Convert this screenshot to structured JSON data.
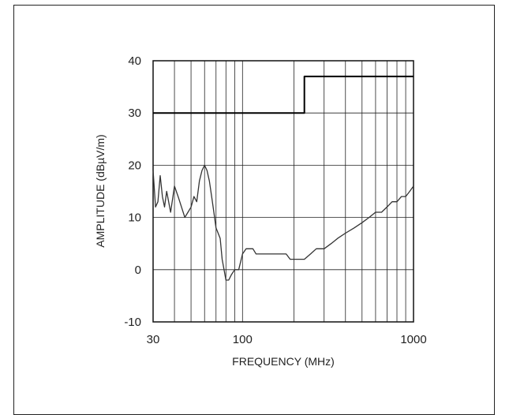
{
  "chart_data": {
    "type": "line",
    "xlabel": "FREQUENCY (MHz)",
    "ylabel": "AMPLITUDE (dBµV/m)",
    "x_scale": "log",
    "xlim": [
      30,
      1000
    ],
    "ylim": [
      -10,
      40
    ],
    "x_tick_labels": [
      "30",
      "100",
      "1000"
    ],
    "x_tick_values": [
      30,
      100,
      1000
    ],
    "y_tick_labels": [
      "-10",
      "0",
      "10",
      "20",
      "30",
      "40"
    ],
    "y_tick_values": [
      -10,
      0,
      10,
      20,
      30,
      40
    ],
    "grid": true,
    "series": [
      {
        "values_x": [
          30,
          230,
          230,
          1000
        ],
        "values_y": [
          30,
          30,
          37,
          37
        ],
        "color": "#000000"
      },
      {
        "values_x": [
          30,
          31,
          32,
          33,
          34,
          35,
          36,
          37,
          38,
          40,
          42,
          44,
          46,
          48,
          50,
          52,
          54,
          56,
          58,
          60,
          62,
          64,
          66,
          68,
          70,
          72,
          74,
          76,
          78,
          80,
          83,
          86,
          90,
          95,
          100,
          105,
          110,
          115,
          120,
          130,
          140,
          150,
          160,
          170,
          180,
          190,
          200,
          210,
          220,
          230,
          250,
          270,
          300,
          330,
          360,
          400,
          450,
          500,
          550,
          600,
          650,
          700,
          750,
          800,
          850,
          900,
          950,
          1000
        ],
        "values_y": [
          19,
          12,
          13,
          18,
          14,
          12,
          15,
          13,
          11,
          16,
          14,
          12,
          10,
          11,
          12,
          14,
          13,
          17,
          19,
          20,
          19,
          17,
          14,
          11,
          8,
          7,
          6,
          2,
          0,
          -2,
          -2,
          -1,
          0,
          0,
          3,
          4,
          4,
          4,
          3,
          3,
          3,
          3,
          3,
          3,
          3,
          2,
          2,
          2,
          2,
          2,
          3,
          4,
          4,
          5,
          6,
          7,
          8,
          9,
          10,
          11,
          11,
          12,
          13,
          13,
          14,
          14,
          15,
          16
        ],
        "color": "#333333"
      }
    ]
  }
}
